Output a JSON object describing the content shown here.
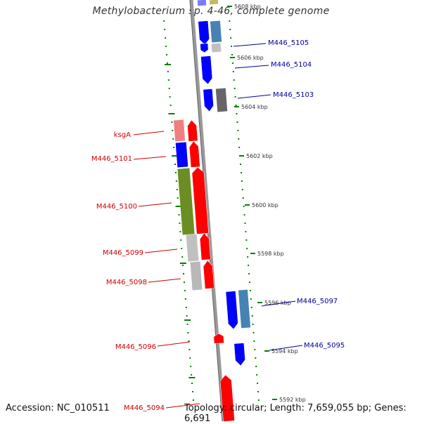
{
  "title": "Methylobacterium sp. 4-46, complete genome",
  "footer": {
    "accession": "Accession: NC_010511",
    "topology": "Topology: circular; Length: 7,659,055 bp; Genes: 6,691"
  },
  "colors": {
    "forward_gene": "#ff0000",
    "reverse_gene": "#0000ff",
    "rna_or_other": "#6b8e23",
    "label_forward": "#cc0000",
    "label_reverse": "#000099",
    "tick": "#008000",
    "backbone": "#888888"
  },
  "scale": {
    "unit": "kbp",
    "ticks": [
      "5608 kbp",
      "5606 kbp",
      "5604 kbp",
      "5602 kbp",
      "5600 kbp",
      "5598 kbp",
      "5596 kbp",
      "5594 kbp",
      "5592 kbp"
    ]
  },
  "genes": [
    {
      "locus": "M446_5105",
      "strand": "reverse"
    },
    {
      "locus": "M446_5104",
      "strand": "reverse"
    },
    {
      "locus": "M446_5103",
      "strand": "reverse"
    },
    {
      "locus": "ksgA",
      "strand": "forward"
    },
    {
      "locus": "M446_5101",
      "strand": "forward"
    },
    {
      "locus": "M446_5100",
      "strand": "forward"
    },
    {
      "locus": "M446_5099",
      "strand": "forward"
    },
    {
      "locus": "M446_5098",
      "strand": "forward"
    },
    {
      "locus": "M446_5097",
      "strand": "reverse"
    },
    {
      "locus": "M446_5096",
      "strand": "forward"
    },
    {
      "locus": "M446_5095",
      "strand": "reverse"
    },
    {
      "locus": "M446_5094",
      "strand": "forward"
    }
  ]
}
